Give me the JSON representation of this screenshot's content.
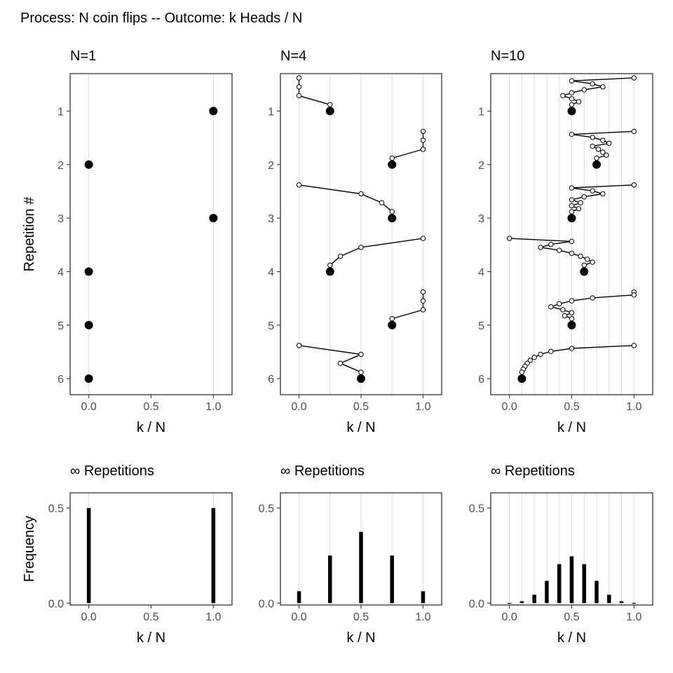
{
  "title": "Process: N coin flips -- Outcome: k Heads / N",
  "colors": {
    "grid": "#e0e0e0",
    "frame": "#333333",
    "tick_text": "#4d4d4d",
    "mark": "#000000",
    "open_point_fill": "#ffffff"
  },
  "chart_data": [
    {
      "type": "scatter",
      "panel": "top-left",
      "title": "N=1",
      "xlabel": "k / N",
      "ylabel": "Repetition #",
      "xlim": [
        -0.15,
        1.15
      ],
      "ylim": [
        0.3,
        6.3
      ],
      "y_reversed": true,
      "xticks": [
        0,
        0.5,
        1
      ],
      "xtick_labels": [
        "0.0",
        "0.5",
        "1.0"
      ],
      "yticks": [
        1,
        2,
        3,
        4,
        5,
        6
      ],
      "ytick_labels": [
        "1",
        "2",
        "3",
        "4",
        "5",
        "6"
      ],
      "x_gridlines": [
        0,
        1
      ],
      "grid": true,
      "repetitions": [
        {
          "rep": 1,
          "final": 1,
          "path": []
        },
        {
          "rep": 2,
          "final": 0,
          "path": []
        },
        {
          "rep": 3,
          "final": 1,
          "path": []
        },
        {
          "rep": 4,
          "final": 0,
          "path": []
        },
        {
          "rep": 5,
          "final": 0,
          "path": []
        },
        {
          "rep": 6,
          "final": 0,
          "path": []
        }
      ]
    },
    {
      "type": "scatter",
      "panel": "top-middle",
      "title": "N=4",
      "xlabel": "k / N",
      "ylabel": "",
      "xlim": [
        -0.15,
        1.15
      ],
      "ylim": [
        0.3,
        6.3
      ],
      "y_reversed": true,
      "xticks": [
        0,
        0.5,
        1
      ],
      "xtick_labels": [
        "0.0",
        "0.5",
        "1.0"
      ],
      "yticks": [
        1,
        2,
        3,
        4,
        5,
        6
      ],
      "ytick_labels": [
        "1",
        "2",
        "3",
        "4",
        "5",
        "6"
      ],
      "x_gridlines": [
        0,
        0.25,
        0.5,
        0.75,
        1
      ],
      "grid": true,
      "repetitions": [
        {
          "rep": 1,
          "final": 0.25,
          "path": [
            0,
            0,
            0,
            0.25
          ]
        },
        {
          "rep": 2,
          "final": 0.75,
          "path": [
            1,
            1,
            1,
            0.75
          ]
        },
        {
          "rep": 3,
          "final": 0.75,
          "path": [
            0,
            0.5,
            0.667,
            0.75
          ]
        },
        {
          "rep": 4,
          "final": 0.25,
          "path": [
            1,
            0.5,
            0.333,
            0.25
          ]
        },
        {
          "rep": 5,
          "final": 0.75,
          "path": [
            1,
            1,
            1,
            0.75
          ]
        },
        {
          "rep": 6,
          "final": 0.5,
          "path": [
            0,
            0.5,
            0.333,
            0.5
          ]
        }
      ]
    },
    {
      "type": "scatter",
      "panel": "top-right",
      "title": "N=10",
      "xlabel": "k / N",
      "ylabel": "",
      "xlim": [
        -0.15,
        1.15
      ],
      "ylim": [
        0.3,
        6.3
      ],
      "y_reversed": true,
      "xticks": [
        0,
        0.5,
        1
      ],
      "xtick_labels": [
        "0.0",
        "0.5",
        "1.0"
      ],
      "yticks": [
        1,
        2,
        3,
        4,
        5,
        6
      ],
      "ytick_labels": [
        "1",
        "2",
        "3",
        "4",
        "5",
        "6"
      ],
      "x_gridlines": [
        0,
        0.1,
        0.2,
        0.3,
        0.4,
        0.5,
        0.6,
        0.7,
        0.8,
        0.9,
        1
      ],
      "grid": true,
      "repetitions": [
        {
          "rep": 1,
          "final": 0.5,
          "path": [
            1,
            0.5,
            0.667,
            0.75,
            0.6,
            0.5,
            0.429,
            0.5,
            0.556,
            0.5
          ]
        },
        {
          "rep": 2,
          "final": 0.7,
          "path": [
            1,
            0.5,
            0.667,
            0.75,
            0.8,
            0.667,
            0.714,
            0.75,
            0.778,
            0.7
          ]
        },
        {
          "rep": 3,
          "final": 0.5,
          "path": [
            1,
            0.5,
            0.667,
            0.75,
            0.6,
            0.5,
            0.571,
            0.5,
            0.556,
            0.5
          ]
        },
        {
          "rep": 4,
          "final": 0.6,
          "path": [
            0,
            0.5,
            0.333,
            0.25,
            0.4,
            0.5,
            0.571,
            0.625,
            0.667,
            0.6
          ]
        },
        {
          "rep": 5,
          "final": 0.5,
          "path": [
            1,
            1,
            0.667,
            0.5,
            0.4,
            0.333,
            0.429,
            0.5,
            0.444,
            0.5
          ]
        },
        {
          "rep": 6,
          "final": 0.1,
          "path": [
            1,
            0.5,
            0.333,
            0.25,
            0.2,
            0.167,
            0.143,
            0.125,
            0.111,
            0.1
          ]
        }
      ]
    },
    {
      "type": "bar",
      "panel": "bottom-left",
      "title": "∞ Repetitions",
      "xlabel": "k / N",
      "ylabel": "Frequency",
      "xlim": [
        -0.15,
        1.15
      ],
      "ylim": [
        -0.01,
        0.58
      ],
      "xticks": [
        0,
        0.5,
        1
      ],
      "xtick_labels": [
        "0.0",
        "0.5",
        "1.0"
      ],
      "yticks": [
        0,
        0.5
      ],
      "ytick_labels": [
        "0.0",
        "0.5"
      ],
      "x_gridlines": [
        0,
        1
      ],
      "grid": true,
      "x": [
        0,
        1
      ],
      "values": [
        0.5,
        0.5
      ]
    },
    {
      "type": "bar",
      "panel": "bottom-middle",
      "title": "∞ Repetitions",
      "xlabel": "k / N",
      "ylabel": "",
      "xlim": [
        -0.15,
        1.15
      ],
      "ylim": [
        -0.01,
        0.58
      ],
      "xticks": [
        0,
        0.5,
        1
      ],
      "xtick_labels": [
        "0.0",
        "0.5",
        "1.0"
      ],
      "yticks": [
        0,
        0.5
      ],
      "ytick_labels": [
        "0.0",
        "0.5"
      ],
      "x_gridlines": [
        0,
        0.25,
        0.5,
        0.75,
        1
      ],
      "grid": true,
      "x": [
        0,
        0.25,
        0.5,
        0.75,
        1
      ],
      "values": [
        0.0625,
        0.25,
        0.375,
        0.25,
        0.0625
      ]
    },
    {
      "type": "bar",
      "panel": "bottom-right",
      "title": "∞ Repetitions",
      "xlabel": "k / N",
      "ylabel": "",
      "xlim": [
        -0.15,
        1.15
      ],
      "ylim": [
        -0.01,
        0.58
      ],
      "xticks": [
        0,
        0.5,
        1
      ],
      "xtick_labels": [
        "0.0",
        "0.5",
        "1.0"
      ],
      "yticks": [
        0,
        0.5
      ],
      "ytick_labels": [
        "0.0",
        "0.5"
      ],
      "x_gridlines": [
        0,
        0.1,
        0.2,
        0.3,
        0.4,
        0.5,
        0.6,
        0.7,
        0.8,
        0.9,
        1
      ],
      "grid": true,
      "x": [
        0,
        0.1,
        0.2,
        0.3,
        0.4,
        0.5,
        0.6,
        0.7,
        0.8,
        0.9,
        1
      ],
      "values": [
        0.001,
        0.0098,
        0.0439,
        0.1172,
        0.2051,
        0.2461,
        0.2051,
        0.1172,
        0.0439,
        0.0098,
        0.001
      ]
    }
  ]
}
